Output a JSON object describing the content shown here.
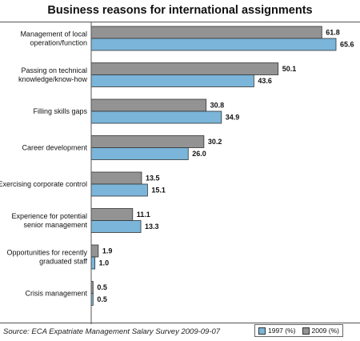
{
  "chart_data": {
    "type": "bar",
    "orientation": "horizontal",
    "title": "Business reasons for international assignments",
    "categories": [
      [
        "Management of local",
        "operation/function"
      ],
      [
        "Passing on technical",
        "knowledge/know-how"
      ],
      [
        "Filling skills gaps"
      ],
      [
        "Career development"
      ],
      [
        "Exercising corporate control"
      ],
      [
        "Experience for potential",
        "senior management"
      ],
      [
        "Opportunities for recently",
        "graduated staff"
      ],
      [
        "Crisis management"
      ]
    ],
    "series": [
      {
        "name": "2009 (%)",
        "color": "#939393",
        "values": [
          61.8,
          50.1,
          30.8,
          30.2,
          13.5,
          11.1,
          1.9,
          0.5
        ]
      },
      {
        "name": "1997 (%)",
        "color": "#7bb5d9",
        "values": [
          65.6,
          43.6,
          34.9,
          26.0,
          15.1,
          13.3,
          1.0,
          0.5
        ]
      }
    ],
    "value_labels": [
      [
        "61.8",
        "50.1",
        "30.8",
        "30.2",
        "13.5",
        "11.1",
        "1.9",
        "0.5"
      ],
      [
        "65.6",
        "43.6",
        "34.9",
        "26.0",
        "15.1",
        "13.3",
        "1.0",
        "0.5"
      ]
    ],
    "xlim": [
      0,
      65.6
    ],
    "grid": false,
    "legend_position": "bottom-right",
    "legend_order": [
      "1997 (%)",
      "2009 (%)"
    ]
  },
  "source": "Source: ECA Expatriate Management Salary Survey 2009-09-07"
}
